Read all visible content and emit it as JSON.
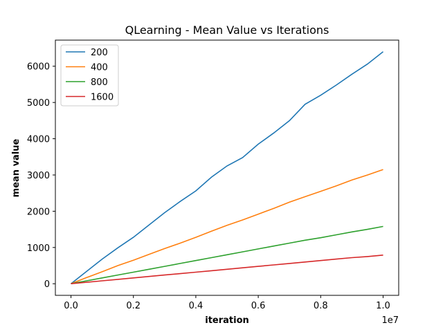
{
  "chart_data": {
    "type": "line",
    "title": "QLearning - Mean Value vs Iterations",
    "xlabel": "iteration",
    "ylabel": "mean value",
    "x_offset_label": "1e7",
    "x_multiplier": 10000000,
    "xlim": [
      -0.05,
      1.05
    ],
    "ylim": [
      -320,
      6720
    ],
    "x_ticks": [
      0.0,
      0.2,
      0.4,
      0.6,
      0.8,
      1.0
    ],
    "x_tick_labels": [
      "0.0",
      "0.2",
      "0.4",
      "0.6",
      "0.8",
      "1.0"
    ],
    "y_ticks": [
      0,
      1000,
      2000,
      3000,
      4000,
      5000,
      6000
    ],
    "y_tick_labels": [
      "0",
      "1000",
      "2000",
      "3000",
      "4000",
      "5000",
      "6000"
    ],
    "grid": false,
    "legend_position": "top-left",
    "x": [
      0.0,
      0.05,
      0.1,
      0.15,
      0.2,
      0.25,
      0.3,
      0.35,
      0.4,
      0.45,
      0.5,
      0.55,
      0.6,
      0.65,
      0.7,
      0.75,
      0.8,
      0.85,
      0.9,
      0.95,
      1.0
    ],
    "series": [
      {
        "name": "200",
        "color": "#1f77b4",
        "values": [
          0,
          340,
          680,
          990,
          1280,
          1620,
          1960,
          2270,
          2560,
          2940,
          3250,
          3480,
          3850,
          4160,
          4500,
          4950,
          5200,
          5480,
          5780,
          6060,
          6400
        ]
      },
      {
        "name": "400",
        "color": "#ff7f0e",
        "values": [
          0,
          170,
          330,
          500,
          650,
          810,
          970,
          1120,
          1280,
          1450,
          1610,
          1760,
          1920,
          2080,
          2250,
          2400,
          2550,
          2700,
          2860,
          3000,
          3150
        ]
      },
      {
        "name": "800",
        "color": "#2ca02c",
        "values": [
          0,
          80,
          160,
          240,
          320,
          400,
          480,
          560,
          640,
          720,
          800,
          880,
          960,
          1040,
          1120,
          1200,
          1270,
          1350,
          1430,
          1500,
          1580
        ]
      },
      {
        "name": "1600",
        "color": "#d62728",
        "values": [
          0,
          40,
          80,
          120,
          160,
          200,
          240,
          280,
          320,
          360,
          400,
          440,
          480,
          520,
          560,
          600,
          640,
          680,
          720,
          750,
          790
        ]
      }
    ]
  }
}
